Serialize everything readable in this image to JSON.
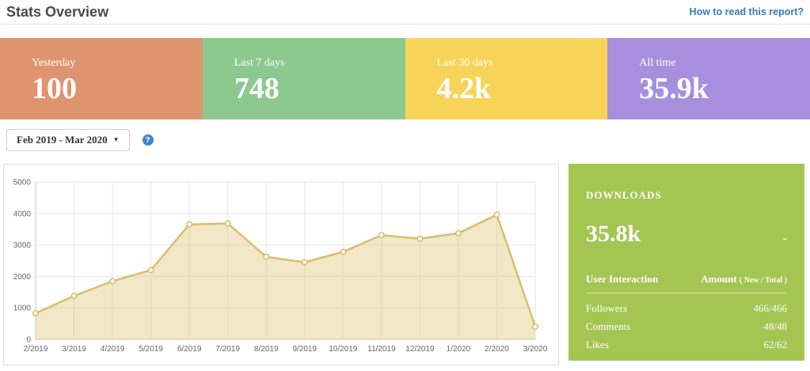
{
  "header": {
    "title": "Stats Overview",
    "help_link": "How to read this report?"
  },
  "icons": {
    "dropdown_caret": "▼",
    "help": "?"
  },
  "stat_cards": [
    {
      "label": "Yesterday",
      "value": "100",
      "color": "#df9470"
    },
    {
      "label": "Last 7 days",
      "value": "748",
      "color": "#8bc98f"
    },
    {
      "label": "Last 30 days",
      "value": "4.2k",
      "color": "#f7d457"
    },
    {
      "label": "All time",
      "value": "35.9k",
      "color": "#a78fde"
    }
  ],
  "filters": {
    "date_range_label": "Feb 2019 - Mar 2020"
  },
  "chart_data": {
    "type": "area",
    "title": "",
    "xlabel": "",
    "ylabel": "",
    "x": [
      "2/2019",
      "3/2019",
      "4/2019",
      "5/2019",
      "6/2019",
      "7/2019",
      "8/2019",
      "9/2019",
      "10/2019",
      "11/2019",
      "12/2019",
      "1/2020",
      "2/2020",
      "3/2020"
    ],
    "series": [
      {
        "name": "Downloads",
        "values": [
          830,
          1380,
          1850,
          2200,
          3650,
          3680,
          2620,
          2450,
          2780,
          3310,
          3200,
          3370,
          3960,
          400
        ]
      }
    ],
    "ylim": [
      0,
      5000
    ],
    "yticks": [
      0,
      1000,
      2000,
      3000,
      4000,
      5000
    ],
    "grid": true,
    "legend_position": "none",
    "line_color": "#d9bd6e",
    "fill_color": "rgba(224,198,118,0.42)",
    "marker_fill": "#ffffff",
    "axis_color": "#c4c4c4",
    "grid_color": "#e6e6e6",
    "tick_color": "#666666"
  },
  "downloads_panel": {
    "title": "DOWNLOADS",
    "value": "35.8k",
    "delta": "-",
    "bg_color": "#a3c653",
    "table": {
      "col1_header": "User Interaction",
      "col2_header": "Amount",
      "col2_header_sub": "( New / Total )",
      "rows": [
        {
          "name": "Followers",
          "amount": "466/466"
        },
        {
          "name": "Comments",
          "amount": "48/48"
        },
        {
          "name": "Likes",
          "amount": "62/62"
        }
      ]
    }
  }
}
